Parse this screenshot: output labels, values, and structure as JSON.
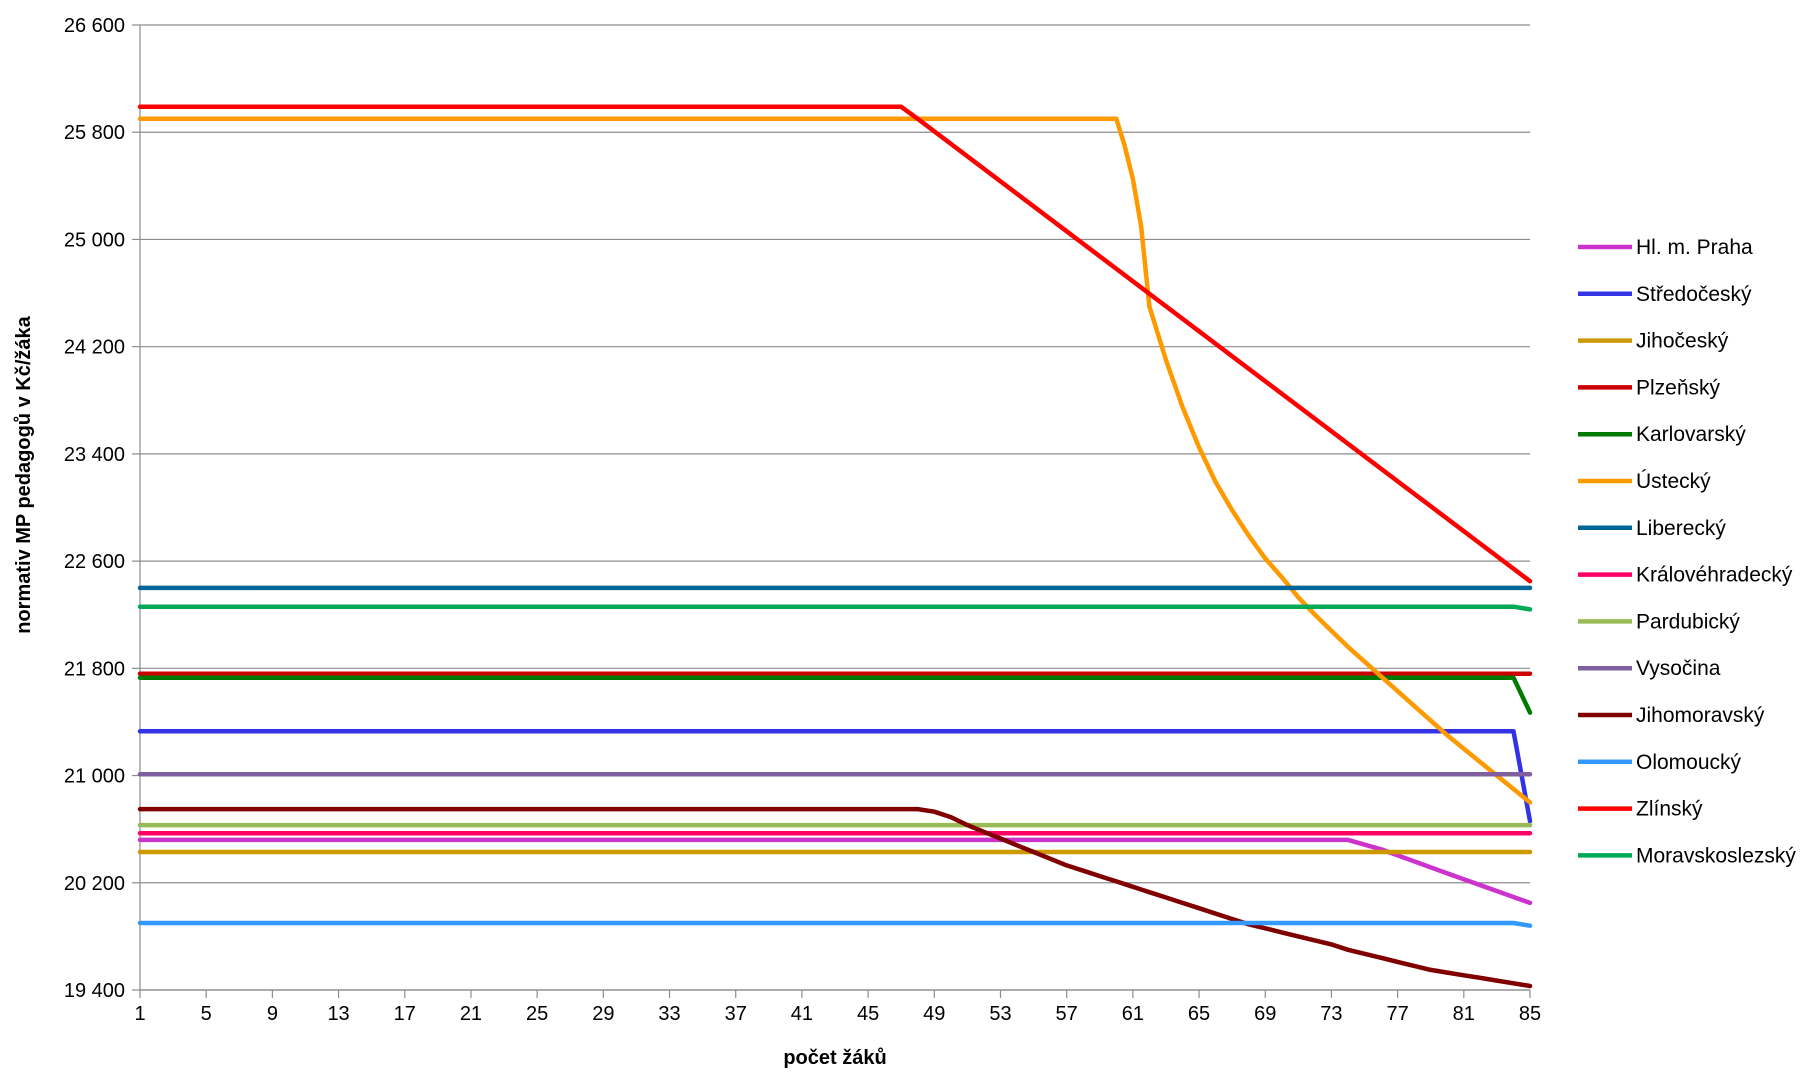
{
  "chart_data": {
    "type": "line",
    "title": "",
    "xlabel": "počet žáků",
    "ylabel": "normativ MP pedagogů v Kč/žáka",
    "xlim": [
      1,
      85
    ],
    "ylim": [
      19400,
      26600
    ],
    "x_ticks": [
      "1",
      "5",
      "9",
      "13",
      "17",
      "21",
      "25",
      "29",
      "33",
      "37",
      "41",
      "45",
      "49",
      "53",
      "57",
      "61",
      "65",
      "69",
      "73",
      "77",
      "81",
      "85"
    ],
    "y_ticks": [
      "19 400",
      "20 200",
      "21 000",
      "21 800",
      "22 600",
      "23 400",
      "24 200",
      "25 000",
      "25 800",
      "26 600"
    ],
    "grid": "horizontal",
    "legend_position": "right",
    "series": [
      {
        "name": "Hl. m. Praha",
        "color": "#cc33cc",
        "points": [
          [
            1,
            20520
          ],
          [
            74,
            20520
          ],
          [
            76,
            20450
          ],
          [
            80,
            20270
          ],
          [
            85,
            20050
          ]
        ]
      },
      {
        "name": "Středočeský",
        "color": "#3333e6",
        "points": [
          [
            1,
            21330
          ],
          [
            84,
            21330
          ],
          [
            85,
            20660
          ]
        ]
      },
      {
        "name": "Jihočeský",
        "color": "#cc9900",
        "points": [
          [
            1,
            20430
          ],
          [
            85,
            20430
          ]
        ]
      },
      {
        "name": "Plzeňský",
        "color": "#cc0000",
        "points": [
          [
            1,
            21760
          ],
          [
            85,
            21760
          ]
        ]
      },
      {
        "name": "Karlovarský",
        "color": "#007a00",
        "points": [
          [
            1,
            21730
          ],
          [
            84,
            21730
          ],
          [
            85,
            21470
          ]
        ]
      },
      {
        "name": "Ústecký",
        "color": "#ff9900",
        "points": [
          [
            1,
            25900
          ],
          [
            60,
            25900
          ],
          [
            60.5,
            25700
          ],
          [
            61,
            25450
          ],
          [
            61.5,
            25100
          ],
          [
            62,
            24500
          ],
          [
            63,
            24100
          ],
          [
            64,
            23750
          ],
          [
            65,
            23450
          ],
          [
            66,
            23190
          ],
          [
            67,
            22980
          ],
          [
            68,
            22790
          ],
          [
            69,
            22620
          ],
          [
            70,
            22480
          ],
          [
            71,
            22330
          ],
          [
            72,
            22200
          ],
          [
            73,
            22080
          ],
          [
            74,
            21960
          ],
          [
            75,
            21850
          ],
          [
            76,
            21740
          ],
          [
            77,
            21630
          ],
          [
            78,
            21520
          ],
          [
            79,
            21410
          ],
          [
            80,
            21300
          ],
          [
            81,
            21200
          ],
          [
            82,
            21100
          ],
          [
            83,
            21000
          ],
          [
            84,
            20900
          ],
          [
            85,
            20800
          ]
        ]
      },
      {
        "name": "Liberecký",
        "color": "#006699",
        "points": [
          [
            1,
            22400
          ],
          [
            85,
            22400
          ]
        ]
      },
      {
        "name": "Královéhradecký",
        "color": "#ff0066",
        "points": [
          [
            1,
            20570
          ],
          [
            85,
            20570
          ]
        ]
      },
      {
        "name": "Pardubický",
        "color": "#99bb55",
        "points": [
          [
            1,
            20630
          ],
          [
            85,
            20630
          ]
        ]
      },
      {
        "name": "Vysočina",
        "color": "#7f5f9f",
        "points": [
          [
            1,
            21010
          ],
          [
            85,
            21010
          ]
        ]
      },
      {
        "name": "Jihomoravský",
        "color": "#800000",
        "points": [
          [
            1,
            20750
          ],
          [
            48,
            20750
          ],
          [
            49,
            20730
          ],
          [
            50,
            20690
          ],
          [
            51,
            20630
          ],
          [
            52,
            20580
          ],
          [
            53,
            20530
          ],
          [
            54,
            20480
          ],
          [
            55,
            20430
          ],
          [
            56,
            20380
          ],
          [
            57,
            20330
          ],
          [
            58,
            20290
          ],
          [
            59,
            20250
          ],
          [
            60,
            20210
          ],
          [
            61,
            20170
          ],
          [
            62,
            20130
          ],
          [
            63,
            20090
          ],
          [
            64,
            20050
          ],
          [
            65,
            20010
          ],
          [
            66,
            19970
          ],
          [
            67,
            19930
          ],
          [
            68,
            19890
          ],
          [
            69,
            19860
          ],
          [
            70,
            19830
          ],
          [
            71,
            19800
          ],
          [
            72,
            19770
          ],
          [
            73,
            19740
          ],
          [
            74,
            19700
          ],
          [
            75,
            19670
          ],
          [
            76,
            19640
          ],
          [
            77,
            19610
          ],
          [
            78,
            19580
          ],
          [
            79,
            19550
          ],
          [
            80,
            19530
          ],
          [
            81,
            19510
          ],
          [
            82,
            19490
          ],
          [
            83,
            19470
          ],
          [
            84,
            19450
          ],
          [
            85,
            19430
          ]
        ]
      },
      {
        "name": "Olomoucký",
        "color": "#3399ff",
        "points": [
          [
            1,
            19900
          ],
          [
            84,
            19900
          ],
          [
            85,
            19880
          ]
        ]
      },
      {
        "name": "Zlínský",
        "color": "#ff0000",
        "points": [
          [
            1,
            25990
          ],
          [
            47,
            25990
          ],
          [
            48,
            25900
          ],
          [
            85,
            22450
          ]
        ]
      },
      {
        "name": "Moravskoslezský",
        "color": "#00aa55",
        "points": [
          [
            1,
            22260
          ],
          [
            84,
            22260
          ],
          [
            85,
            22240
          ]
        ]
      }
    ]
  }
}
